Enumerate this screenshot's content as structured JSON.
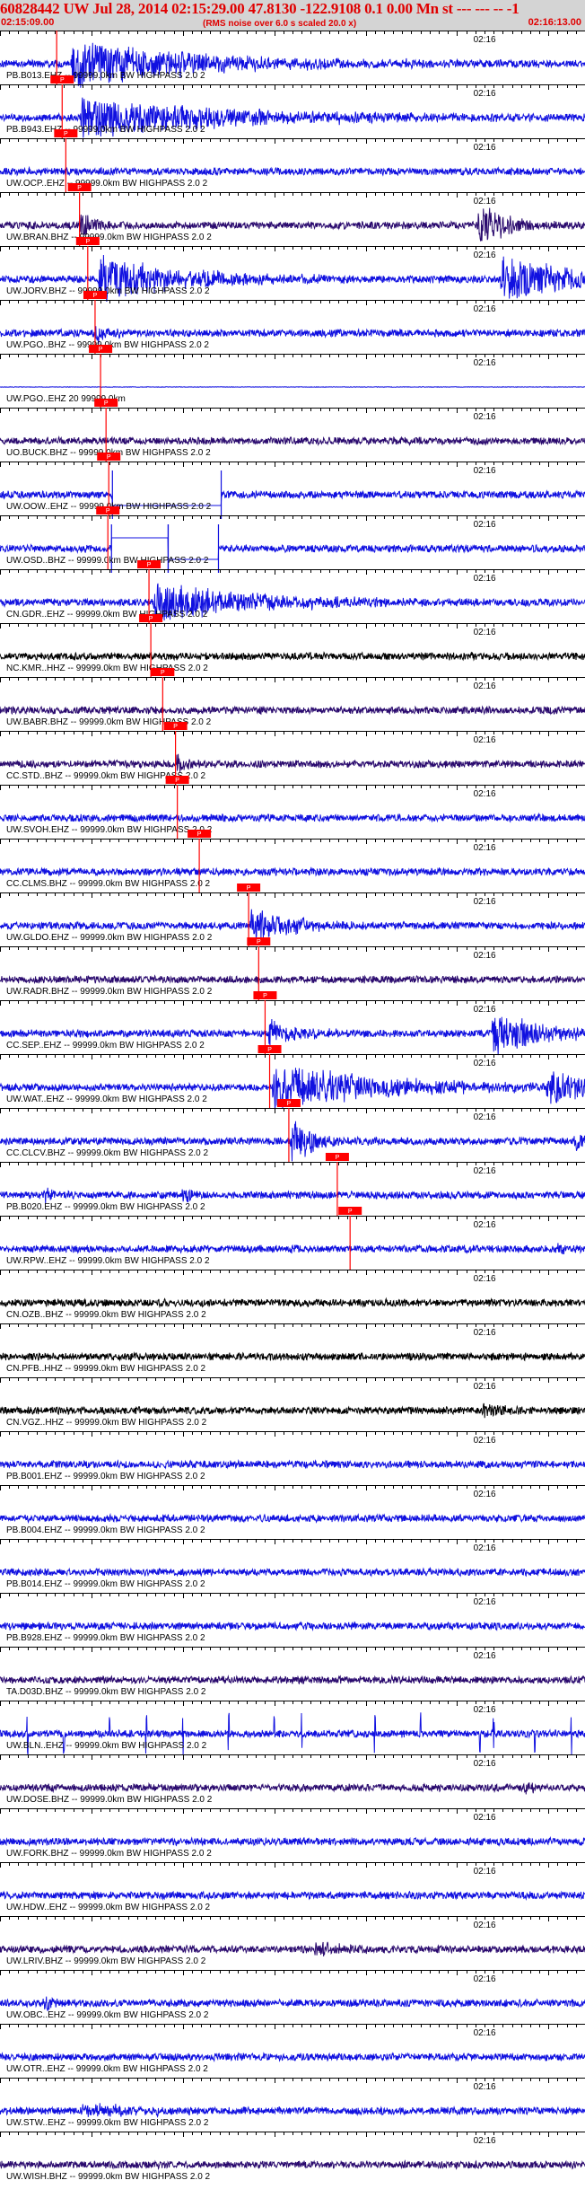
{
  "header": {
    "title": "60828442 UW Jul 28, 2014 02:15:29.00   47.8130 -122.9108  0.1 0.00 Mn st --- --- --  -1",
    "start_time": "02:15:09.00",
    "note": "(RMS noise over 6.0 s scaled 20.0 x)",
    "end_time": "02:16:13.00"
  },
  "chart_data": {
    "type": "line",
    "title": "60828442 UW Jul 28, 2014 02:15:29.00   47.8130 -122.9108  0.1 0.00 Mn st --- --- --  -1",
    "x_start": "02:15:09.00",
    "x_end": "02:16:13.00",
    "x_range_seconds": [
      0,
      64
    ],
    "minute_label": "02:16",
    "minute_mark_seconds": 51,
    "pick_label": "P",
    "colors": {
      "blue": "#1010e0",
      "purple": "#2a0a6e",
      "black": "#000000",
      "pick": "#ff0000",
      "header_bg": "#d4d4d4"
    },
    "traces": [
      {
        "label": "PB.B013.EHZ -- 99999.0km BW  HIGHPASS  2.0  2",
        "color": "blue",
        "pick_s": 6.2,
        "events": [
          {
            "t": 8,
            "amp": 1.0,
            "dur": 14
          }
        ]
      },
      {
        "label": "PB.B943.EHZ -- 99999.0km BW  HIGHPASS  2.0  2",
        "color": "blue",
        "pick_s": 6.8,
        "events": [
          {
            "t": 9,
            "amp": 0.9,
            "dur": 16
          }
        ]
      },
      {
        "label": "UW.OCP..EHZ -- 99999.0km BW  HIGHPASS  2.0  2",
        "color": "blue",
        "pick_s": 7.2,
        "events": []
      },
      {
        "label": "UW.BRAN.BHZ -- 99999.0km BW  HIGHPASS  2.0  2",
        "color": "purple",
        "pick_s": 8.7,
        "events": [
          {
            "t": 8.9,
            "amp": 0.6,
            "dur": 1.5
          },
          {
            "t": 52.5,
            "amp": 0.95,
            "dur": 3
          }
        ]
      },
      {
        "label": "UW.JORV.BHZ -- 99999.0km BW  HIGHPASS  2.0  2",
        "color": "blue",
        "pick_s": 9.6,
        "events": [
          {
            "t": 11,
            "amp": 1.0,
            "dur": 9
          },
          {
            "t": 55,
            "amp": 1.0,
            "dur": 8
          }
        ]
      },
      {
        "label": "UW.PGO..BHZ -- 99999.0km BW  HIGHPASS  2.0  2",
        "color": "blue",
        "pick_s": 10.4,
        "events": [
          {
            "t": 10.6,
            "amp": 0.4,
            "dur": 1.5
          }
        ]
      },
      {
        "label": "UW.PGO..EHZ 20 99999.0km",
        "color": "blue",
        "pick_s": 11.0,
        "flat": true,
        "events": []
      },
      {
        "label": "UO.BUCK.BHZ -- 99999.0km BW  HIGHPASS  2.0  2",
        "color": "purple",
        "pick_s": 11.6,
        "events": []
      },
      {
        "label": "UW.OOW..EHZ -- 99999.0km BW  HIGHPASS  2.0  2",
        "color": "blue",
        "pick_s": 11.9,
        "clipped": [
          [
            12.3,
            24.2,
            "low"
          ]
        ],
        "events": []
      },
      {
        "label": "UW.OSD..BHZ -- 99999.0km BW  HIGHPASS  2.0  2",
        "color": "blue",
        "pick_s": 11.8,
        "clipped": [
          [
            12.2,
            18.4,
            "high"
          ],
          [
            18.4,
            23.9,
            "low"
          ]
        ],
        "events": []
      },
      {
        "label": "CN.GDR..EHZ -- 99999.0km BW  HIGHPASS  2.0  2",
        "color": "blue",
        "pick_s": 16.3,
        "events": [
          {
            "t": 17,
            "amp": 0.8,
            "dur": 12
          }
        ]
      },
      {
        "label": "NC.KMR..HHZ -- 99999.0km BW  HIGHPASS  2.0  2",
        "color": "black",
        "pick_s": 16.5,
        "events": []
      },
      {
        "label": "UW.BABR.BHZ -- 99999.0km BW  HIGHPASS  2.0  2",
        "color": "purple",
        "pick_s": 17.8,
        "events": []
      },
      {
        "label": "CC.STD..BHZ -- 99999.0km BW  HIGHPASS  2.0  2",
        "color": "purple",
        "pick_s": 19.2,
        "events": [
          {
            "t": 19.4,
            "amp": 0.35,
            "dur": 2
          }
        ]
      },
      {
        "label": "UW.SVOH.EHZ -- 99999.0km BW  HIGHPASS  2.0  2",
        "color": "blue",
        "pick_s": 19.4,
        "events": []
      },
      {
        "label": "CC.CLMS.BHZ -- 99999.0km BW  HIGHPASS  2.0  2",
        "color": "blue",
        "pick_s": 21.8,
        "events": []
      },
      {
        "label": "UW.GLDO.EHZ -- 99999.0km BW  HIGHPASS  2.0  2",
        "color": "blue",
        "pick_s": 27.2,
        "events": [
          {
            "t": 27.5,
            "amp": 0.75,
            "dur": 5
          }
        ]
      },
      {
        "label": "UW.RADR.BHZ -- 99999.0km BW  HIGHPASS  2.0  2",
        "color": "purple",
        "pick_s": 28.3,
        "events": []
      },
      {
        "label": "CC.SEP..EHZ -- 99999.0km BW  HIGHPASS  2.0  2",
        "color": "blue",
        "pick_s": 29.0,
        "events": [
          {
            "t": 29.5,
            "amp": 0.55,
            "dur": 3
          },
          {
            "t": 54,
            "amp": 1.0,
            "dur": 5
          }
        ]
      },
      {
        "label": "UW.WAT..EHZ -- 99999.0km BW  HIGHPASS  2.0  2",
        "color": "blue",
        "pick_s": 29.5,
        "events": [
          {
            "t": 30,
            "amp": 1.0,
            "dur": 12
          },
          {
            "t": 60,
            "amp": 0.8,
            "dur": 5
          }
        ]
      },
      {
        "label": "CC.CLCV.BHZ -- 99999.0km BW  HIGHPASS  2.0  2",
        "color": "blue",
        "pick_s": 31.6,
        "events": [
          {
            "t": 32,
            "amp": 1.0,
            "dur": 2.5
          },
          {
            "t": 63,
            "amp": 0.7,
            "dur": 0.6
          }
        ]
      },
      {
        "label": "PB.B020.EHZ -- 99999.0km BW  HIGHPASS  2.0  2",
        "color": "blue",
        "pick_s": 36.9,
        "events": [
          {
            "t": 5,
            "amp": 0.3,
            "dur": 1
          },
          {
            "t": 20,
            "amp": 0.3,
            "dur": 1
          }
        ]
      },
      {
        "label": "UW.RPW..EHZ -- 99999.0km BW  HIGHPASS  2.0  2",
        "color": "blue",
        "pick_s": 38.3,
        "events": [
          {
            "t": 32,
            "amp": 0.3,
            "dur": 0.5
          },
          {
            "t": 61,
            "amp": 0.35,
            "dur": 0.6
          }
        ]
      },
      {
        "label": "CN.OZB..BHZ -- 99999.0km BW  HIGHPASS  2.0  2",
        "color": "black",
        "events": []
      },
      {
        "label": "CN.PFB..HHZ -- 99999.0km BW  HIGHPASS  2.0  2",
        "color": "black",
        "events": []
      },
      {
        "label": "CN.VGZ..HHZ -- 99999.0km BW  HIGHPASS  2.0  2",
        "color": "black",
        "events": [
          {
            "t": 53,
            "amp": 0.35,
            "dur": 2
          }
        ]
      },
      {
        "label": "PB.B001.EHZ -- 99999.0km BW  HIGHPASS  2.0  2",
        "color": "blue",
        "events": []
      },
      {
        "label": "PB.B004.EHZ -- 99999.0km BW  HIGHPASS  2.0  2",
        "color": "blue",
        "events": []
      },
      {
        "label": "PB.B014.EHZ -- 99999.0km BW  HIGHPASS  2.0  2",
        "color": "blue",
        "events": []
      },
      {
        "label": "PB.B928.EHZ -- 99999.0km BW  HIGHPASS  2.0  2",
        "color": "blue",
        "events": []
      },
      {
        "label": "TA.D03D.BHZ -- 99999.0km BW  HIGHPASS  2.0  2",
        "color": "purple",
        "events": []
      },
      {
        "label": "UW.BLN..EHZ -- 99999.0km BW  HIGHPASS  2.0  2",
        "color": "blue",
        "spikes": [
          3,
          7,
          12,
          16,
          20,
          25,
          30,
          33,
          41,
          46,
          52.5,
          54,
          58.5,
          62.5
        ],
        "events": []
      },
      {
        "label": "UW.DOSE.BHZ -- 99999.0km BW  HIGHPASS  2.0  2",
        "color": "purple",
        "events": [
          {
            "t": 57.5,
            "amp": 0.25,
            "dur": 1
          }
        ]
      },
      {
        "label": "UW.FORK.BHZ -- 99999.0km BW  HIGHPASS  2.0  2",
        "color": "blue",
        "events": []
      },
      {
        "label": "UW.HDW..EHZ -- 99999.0km BW  HIGHPASS  2.0  2",
        "color": "blue",
        "events": []
      },
      {
        "label": "UW.LRIV.BHZ -- 99999.0km BW  HIGHPASS  2.0  2",
        "color": "purple",
        "events": [
          {
            "t": 34.5,
            "amp": 0.35,
            "dur": 3
          }
        ]
      },
      {
        "label": "UW.OBC..EHZ -- 99999.0km BW  HIGHPASS  2.0  2",
        "color": "blue",
        "events": [
          {
            "t": 5,
            "amp": 0.3,
            "dur": 1
          }
        ]
      },
      {
        "label": "UW.OTR..EHZ -- 99999.0km BW  HIGHPASS  2.0  2",
        "color": "blue",
        "events": []
      },
      {
        "label": "UW.STW..EHZ -- 99999.0km BW  HIGHPASS  2.0  2",
        "color": "blue",
        "events": [
          {
            "t": 9,
            "amp": 0.3,
            "dur": 6
          }
        ]
      },
      {
        "label": "UW.WISH.BHZ -- 99999.0km BW  HIGHPASS  2.0  2",
        "color": "purple",
        "events": []
      }
    ]
  }
}
